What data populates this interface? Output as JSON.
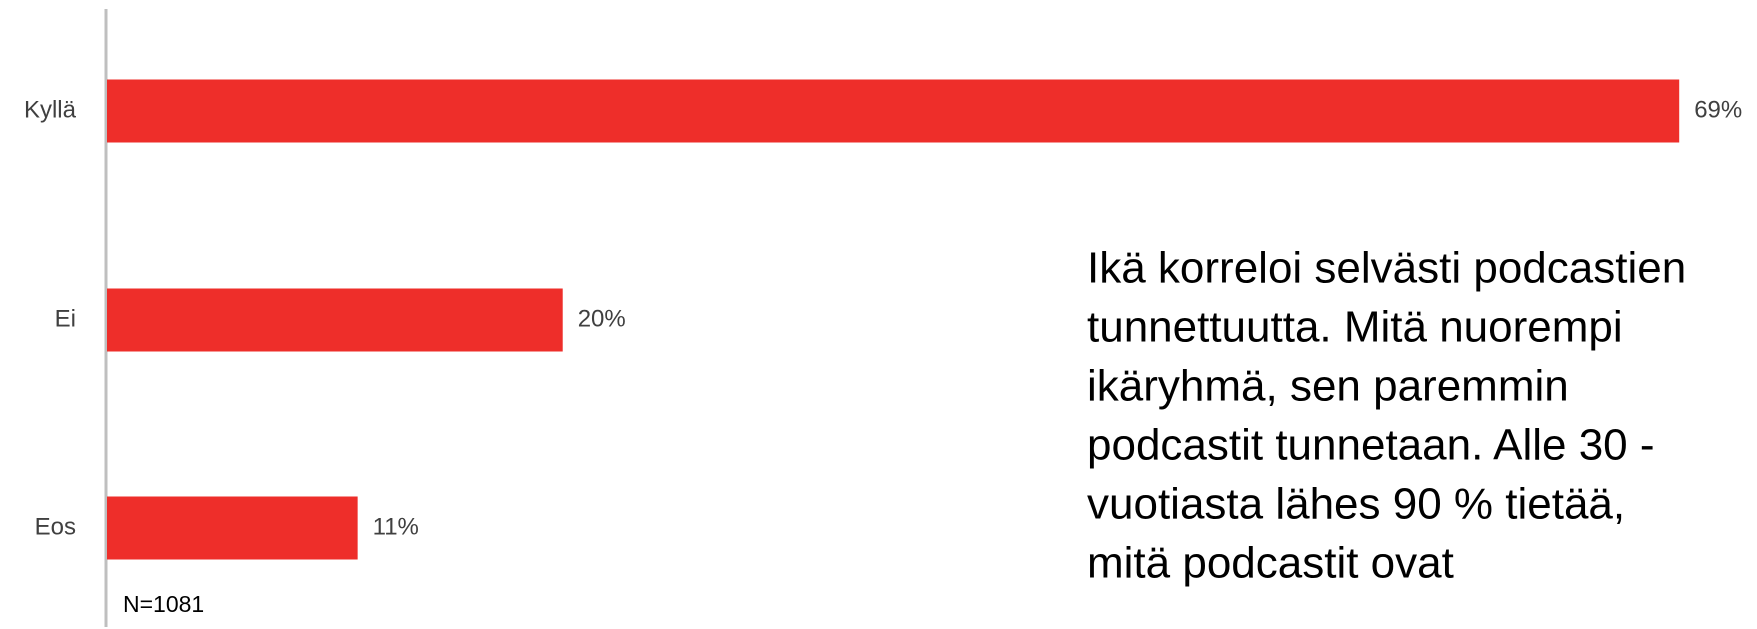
{
  "chart_data": {
    "type": "bar",
    "orientation": "horizontal",
    "categories": [
      "Kyllä",
      "Ei",
      "Eos"
    ],
    "values": [
      69,
      20,
      11
    ],
    "value_labels": [
      "69%",
      "20%",
      "11%"
    ],
    "color": "#ee2e2a",
    "xlim": [
      0,
      70
    ],
    "note": "N=1081",
    "annotation": [
      "Ikä korreloi selvästi podcastien",
      "tunnettuutta. Mitä nuorempi",
      "ikäryhmä, sen paremmin",
      "podcastit tunnetaan. Alle 30 -",
      "vuotiasta lähes 90 % tietää,",
      "mitä podcastit ovat"
    ]
  }
}
